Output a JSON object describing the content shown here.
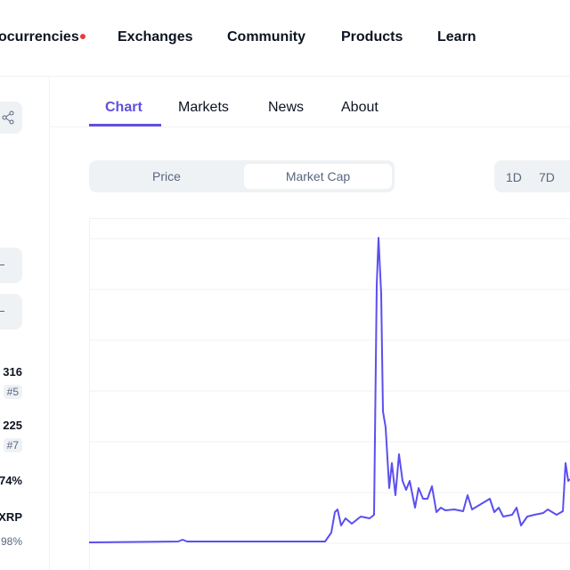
{
  "nav": {
    "items": [
      "ocurrencies",
      "Exchanges",
      "Community",
      "Products",
      "Learn"
    ]
  },
  "tabs": [
    "Chart",
    "Markets",
    "News",
    "About"
  ],
  "toggle": [
    "Price",
    "Market Cap"
  ],
  "ranges": [
    "1D",
    "7D"
  ],
  "sidebar": {
    "stats": [
      {
        "value": "316",
        "rank": "#5"
      },
      {
        "value": "225",
        "rank": "#7"
      },
      {
        "value": "74%"
      },
      {
        "value": "XRP",
        "sub": "98%"
      }
    ]
  }
}
